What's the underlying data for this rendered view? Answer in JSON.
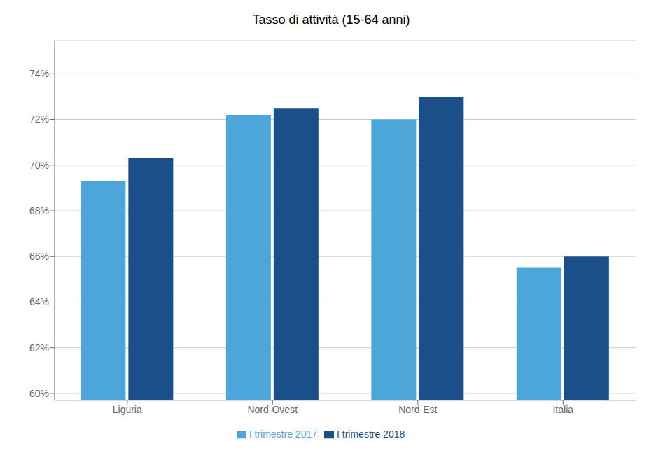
{
  "chart_data": {
    "type": "bar",
    "title": "Tasso di attività (15-64 anni)",
    "categories": [
      "Liguria",
      "Nord-Ovest",
      "Nord-Est",
      "Italia"
    ],
    "series": [
      {
        "name": "I trimestre 2017",
        "color": "#4da6d9",
        "values": [
          69.3,
          72.2,
          72.0,
          65.5
        ]
      },
      {
        "name": "I trimestre 2018",
        "color": "#1a4f8a",
        "values": [
          70.3,
          72.5,
          73.0,
          66.0
        ]
      }
    ],
    "ylim": [
      59.7,
      75.45
    ],
    "yticks": [
      {
        "value": 60,
        "label": "60%"
      },
      {
        "value": 62,
        "label": "62%"
      },
      {
        "value": 64,
        "label": "64%"
      },
      {
        "value": 66,
        "label": "66%"
      },
      {
        "value": 68,
        "label": "68%"
      },
      {
        "value": 70,
        "label": "70%"
      },
      {
        "value": 72,
        "label": "72%"
      },
      {
        "value": 74,
        "label": "74%"
      }
    ],
    "grid": true,
    "legend": "bottom"
  }
}
